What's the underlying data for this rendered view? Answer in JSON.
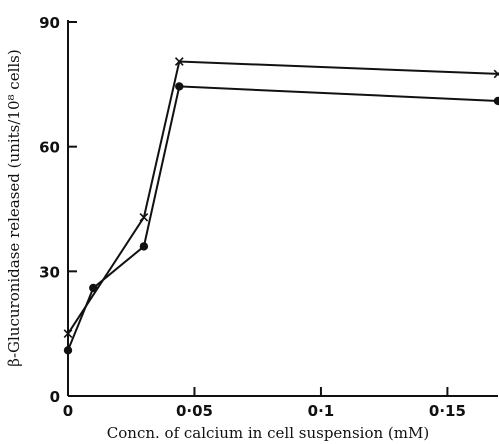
{
  "chart_data": {
    "type": "line",
    "xlabel": "Concn. of calcium in cell suspension (mM)",
    "ylabel": "β-Glucuronidase released (units/10⁸ cells)",
    "xlim": [
      0,
      0.17
    ],
    "ylim": [
      0,
      90
    ],
    "x_ticks": [
      0,
      0.05,
      0.1,
      0.15
    ],
    "x_tick_labels": [
      "0",
      "0·05",
      "0·1",
      "0·15"
    ],
    "y_ticks": [
      0,
      30,
      60,
      90
    ],
    "y_tick_labels": [
      "0",
      "30",
      "60",
      "90"
    ],
    "grid": false,
    "series": [
      {
        "marker": "cross",
        "x": [
          0,
          0.03,
          0.044,
          0.17
        ],
        "y": [
          15,
          43,
          80.5,
          77.5
        ]
      },
      {
        "marker": "dot",
        "x": [
          0,
          0.01,
          0.03,
          0.044,
          0.17
        ],
        "y": [
          11,
          26,
          36,
          74.5,
          71
        ]
      }
    ]
  }
}
